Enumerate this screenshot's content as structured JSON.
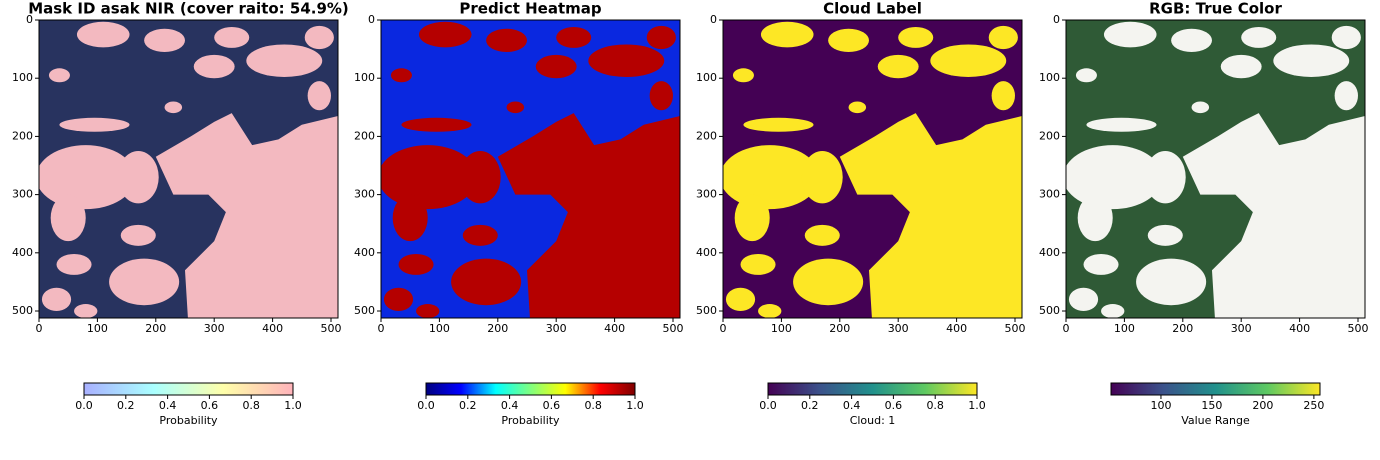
{
  "chart_data": [
    {
      "type": "image",
      "title": "Mask ID asak NIR (cover raito: 54.9%)",
      "xlim": [
        0,
        512
      ],
      "ylim": [
        512,
        0
      ],
      "xticks": [
        0,
        100,
        200,
        300,
        400,
        500
      ],
      "yticks": [
        0,
        100,
        200,
        300,
        400,
        500
      ],
      "colors": [
        "#28335f",
        "#f3b9c0"
      ],
      "colorbar": {
        "label": "Probability",
        "lim": [
          0,
          1
        ],
        "ticks": [
          {
            "value": 0,
            "label": "0.0"
          },
          {
            "value": 0.2,
            "label": "0.2"
          },
          {
            "value": 0.4,
            "label": "0.4"
          },
          {
            "value": 0.6,
            "label": "0.6"
          },
          {
            "value": 0.8,
            "label": "0.8"
          },
          {
            "value": 1,
            "label": "1.0"
          }
        ],
        "colormap": [
          "#a9b0ff",
          "#aaffff",
          "#ffffaa",
          "#ffb3bb"
        ]
      }
    },
    {
      "type": "image",
      "title": "Predict Heatmap",
      "xlim": [
        0,
        512
      ],
      "ylim": [
        512,
        0
      ],
      "xticks": [
        0,
        100,
        200,
        300,
        400,
        500
      ],
      "yticks": [
        0,
        100,
        200,
        300,
        400,
        500
      ],
      "colors": [
        "#0a28e0",
        "#b50000"
      ],
      "colorbar": {
        "label": "Probability",
        "lim": [
          0,
          1
        ],
        "ticks": [
          {
            "value": 0,
            "label": "0.0"
          },
          {
            "value": 0.2,
            "label": "0.2"
          },
          {
            "value": 0.4,
            "label": "0.4"
          },
          {
            "value": 0.6,
            "label": "0.6"
          },
          {
            "value": 0.8,
            "label": "0.8"
          },
          {
            "value": 1,
            "label": "1.0"
          }
        ],
        "colormap": [
          "#00007f",
          "#0000ff",
          "#00ffff",
          "#80ff80",
          "#ffff00",
          "#ff0000",
          "#7f0000"
        ]
      }
    },
    {
      "type": "image",
      "title": "Cloud Label",
      "xlim": [
        0,
        512
      ],
      "ylim": [
        512,
        0
      ],
      "xticks": [
        0,
        100,
        200,
        300,
        400,
        500
      ],
      "yticks": [
        0,
        100,
        200,
        300,
        400,
        500
      ],
      "colors": [
        "#440154",
        "#fde725"
      ],
      "colorbar": {
        "label": "Cloud: 1",
        "lim": [
          0,
          1
        ],
        "ticks": [
          {
            "value": 0,
            "label": "0.0"
          },
          {
            "value": 0.2,
            "label": "0.2"
          },
          {
            "value": 0.4,
            "label": "0.4"
          },
          {
            "value": 0.6,
            "label": "0.6"
          },
          {
            "value": 0.8,
            "label": "0.8"
          },
          {
            "value": 1,
            "label": "1.0"
          }
        ],
        "colormap": [
          "#440154",
          "#3b528b",
          "#21918c",
          "#5ec962",
          "#fde725"
        ]
      }
    },
    {
      "type": "image",
      "title": "RGB: True Color",
      "xlim": [
        0,
        512
      ],
      "ylim": [
        512,
        0
      ],
      "xticks": [
        0,
        100,
        200,
        300,
        400,
        500
      ],
      "yticks": [
        0,
        100,
        200,
        300,
        400,
        500
      ],
      "colors": [
        "#2f5a36",
        "#f4f4f0"
      ],
      "colorbar": {
        "label": "Value Range",
        "lim": [
          51,
          256
        ],
        "ticks": [
          100,
          150,
          200,
          250
        ],
        "colormap": [
          "#440154",
          "#3b528b",
          "#21918c",
          "#5ec962",
          "#fde725"
        ]
      }
    }
  ]
}
